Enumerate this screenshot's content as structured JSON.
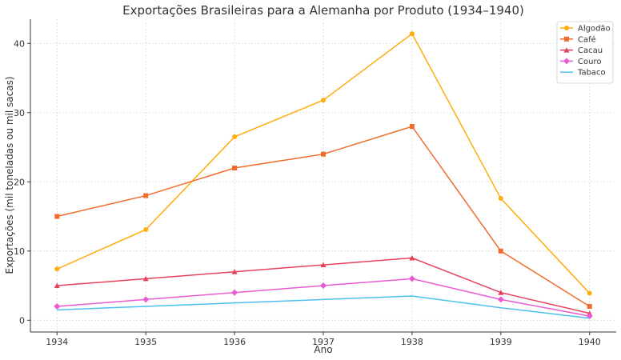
{
  "chart_data": {
    "type": "line",
    "title": "Exportações Brasileiras para a Alemanha por Produto (1934–1940)",
    "xlabel": "Ano",
    "ylabel": "Exportações (mil toneladas ou mil sacas)",
    "x": [
      1934,
      1935,
      1936,
      1937,
      1938,
      1939,
      1940
    ],
    "xlim": [
      1933.7,
      1940.3
    ],
    "ylim": [
      -1.7,
      43.5
    ],
    "yticks": [
      0,
      10,
      20,
      30,
      40
    ],
    "grid": true,
    "legend_position": "top-right",
    "series": [
      {
        "name": "Algodão",
        "color": "#ffad0d",
        "marker": "circle",
        "values": [
          7.4,
          13.1,
          26.5,
          31.8,
          41.4,
          17.6,
          3.9
        ]
      },
      {
        "name": "Café",
        "color": "#f26b2a",
        "marker": "square",
        "values": [
          15,
          18,
          22,
          24,
          28,
          10,
          2
        ]
      },
      {
        "name": "Cacau",
        "color": "#e8415c",
        "marker": "triangle",
        "values": [
          5,
          6,
          7,
          8,
          9,
          4,
          1
        ]
      },
      {
        "name": "Couro",
        "color": "#ea5ad0",
        "marker": "diamond",
        "values": [
          2,
          3,
          4,
          5,
          6,
          3,
          0.6
        ]
      },
      {
        "name": "Tabaco",
        "color": "#4cc1f0",
        "marker": "none",
        "values": [
          1.5,
          2,
          2.5,
          3,
          3.5,
          1.8,
          0.3
        ]
      }
    ]
  }
}
